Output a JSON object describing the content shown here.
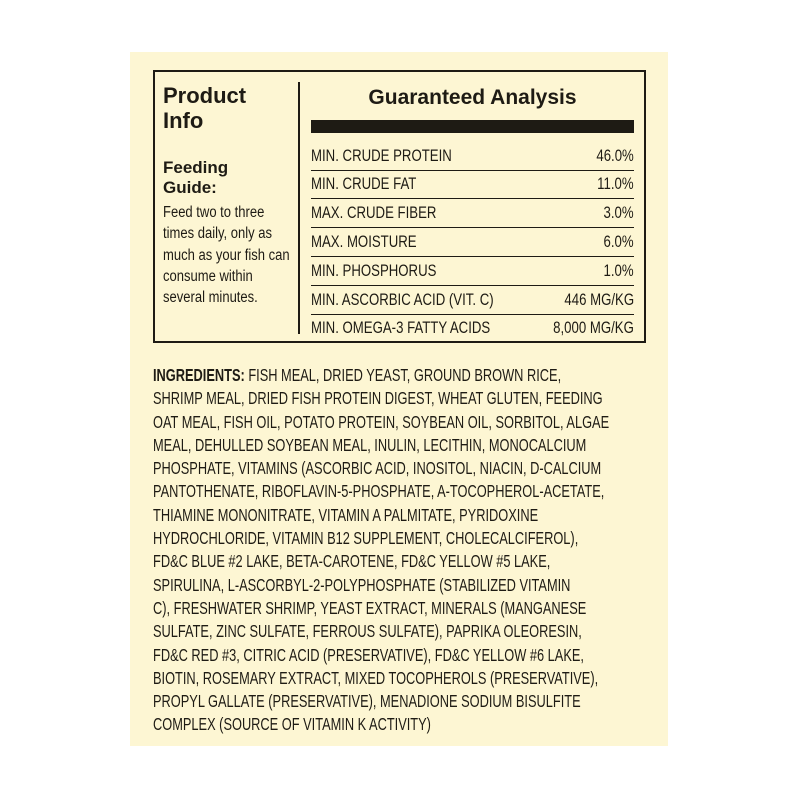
{
  "product_info": {
    "title_line1": "Product",
    "title_line2": "Info",
    "feeding_title_line1": "Feeding",
    "feeding_title_line2": "Guide:",
    "feeding_text": "Feed two to three times daily, only as much as your fish can consume within several minutes."
  },
  "analysis": {
    "title": "Guaranteed Analysis",
    "rows": [
      {
        "label": "MIN. CRUDE PROTEIN",
        "value": "46.0%"
      },
      {
        "label": "MIN. CRUDE FAT",
        "value": "11.0%"
      },
      {
        "label": "MAX. CRUDE FIBER",
        "value": "3.0%"
      },
      {
        "label": "MAX. MOISTURE",
        "value": "6.0%"
      },
      {
        "label": "MIN. PHOSPHORUS",
        "value": "1.0%"
      },
      {
        "label": "MIN. ASCORBIC ACID (VIT. C)",
        "value": "446 MG/KG"
      },
      {
        "label": "MIN. OMEGA-3 FATTY ACIDS",
        "value": "8,000 MG/KG"
      }
    ]
  },
  "ingredients": {
    "heading": "INGREDIENTS:",
    "lines": [
      " FISH MEAL, DRIED YEAST, GROUND BROWN RICE,",
      "SHRIMP MEAL, DRIED FISH PROTEIN DIGEST, WHEAT GLUTEN, FEEDING",
      "OAT MEAL, FISH OIL, POTATO PROTEIN, SOYBEAN OIL, SORBITOL, ALGAE",
      "MEAL, DEHULLED SOYBEAN MEAL, INULIN, LECITHIN, MONOCALCIUM",
      "PHOSPHATE, VITAMINS (ASCORBIC ACID, INOSITOL, NIACIN, D-CALCIUM",
      "PANTOTHENATE, RIBOFLAVIN-5-PHOSPHATE, A-TOCOPHEROL-ACETATE,",
      "THIAMINE MONONITRATE, VITAMIN A PALMITATE, PYRIDOXINE",
      "HYDROCHLORIDE, VITAMIN B12 SUPPLEMENT, CHOLECALCIFEROL),",
      "FD&C BLUE #2 LAKE, BETA-CAROTENE, FD&C YELLOW #5 LAKE,",
      "SPIRULINA, L-ASCORBYL-2-POLYPHOSPHATE (STABILIZED VITAMIN",
      "C), FRESHWATER SHRIMP, YEAST EXTRACT, MINERALS (MANGANESE",
      "SULFATE, ZINC SULFATE, FERROUS SULFATE), PAPRIKA OLEORESIN,",
      "FD&C RED #3, CITRIC ACID (PRESERVATIVE), FD&C YELLOW #6 LAKE,",
      "BIOTIN, ROSEMARY EXTRACT, MIXED TOCOPHEROLS (PRESERVATIVE),",
      "PROPYL GALLATE (PRESERVATIVE), MENADIONE SODIUM BISULFITE",
      "COMPLEX (SOURCE OF VITAMIN K ACTIVITY)"
    ]
  },
  "colors": {
    "background": "#fdf6d3",
    "ink": "#1e1b14"
  }
}
